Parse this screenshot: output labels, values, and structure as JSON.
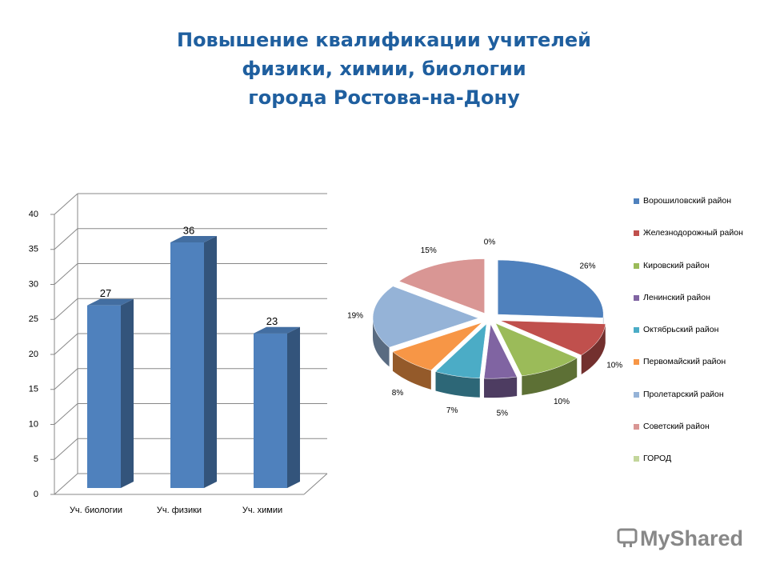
{
  "title": [
    "Повышение квалификации учителей",
    "физики, химии, биологии",
    "города Ростова-на-Дону"
  ],
  "chart_data": [
    {
      "type": "bar",
      "categories": [
        "Уч. биологии",
        "Уч. физики",
        "Уч. химии"
      ],
      "values": [
        27,
        36,
        23
      ],
      "color": "#4f81bd",
      "ylim": [
        0,
        40
      ],
      "yticks": [
        0,
        5,
        10,
        15,
        20,
        25,
        30,
        35,
        40
      ],
      "grid": true
    },
    {
      "type": "pie",
      "categories": [
        "Ворошиловский район",
        "Железнодорожный район",
        "Кировский район",
        "Ленинский район",
        "Октябрьский район",
        "Первомайский район",
        "Пролетарский район",
        "Советский район",
        "ГОРОД"
      ],
      "values": [
        26,
        10,
        10,
        5,
        7,
        8,
        19,
        15,
        0
      ],
      "value_labels": [
        "26%",
        "10%",
        "10%",
        "5%",
        "7%",
        "8%",
        "19%",
        "15%",
        "0%"
      ],
      "colors": [
        "#4f81bd",
        "#c0504d",
        "#9bbb59",
        "#8064a2",
        "#4bacc6",
        "#f79646",
        "#95b3d7",
        "#d99694",
        "#c3d69b"
      ],
      "legend": "right"
    }
  ],
  "watermark": "MyShared"
}
